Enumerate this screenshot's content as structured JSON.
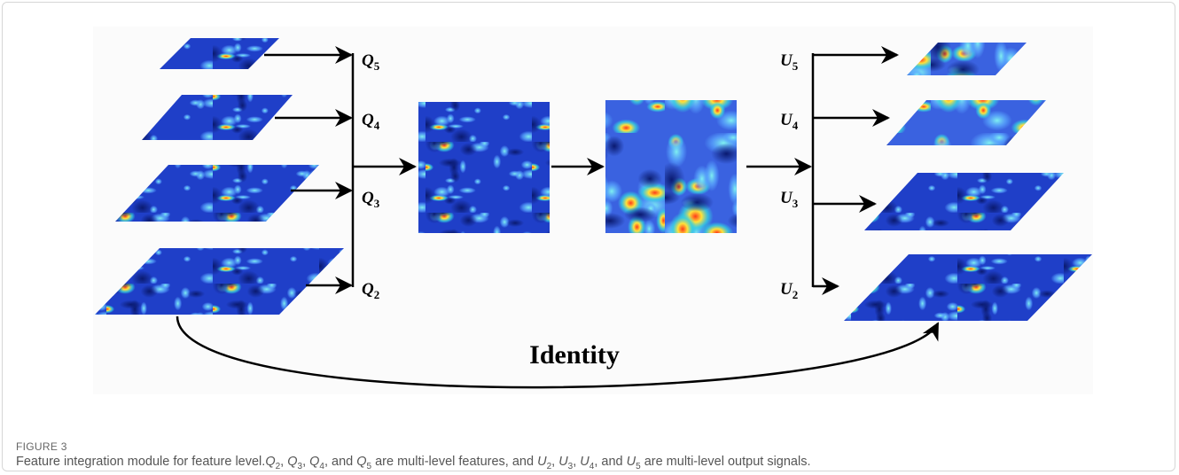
{
  "figure": {
    "left_labels": [
      {
        "text": "Q",
        "sub": "5"
      },
      {
        "text": "Q",
        "sub": "4"
      },
      {
        "text": "Q",
        "sub": "3"
      },
      {
        "text": "Q",
        "sub": "2"
      }
    ],
    "right_labels": [
      {
        "text": "U",
        "sub": "5"
      },
      {
        "text": "U",
        "sub": "4"
      },
      {
        "text": "U",
        "sub": "3"
      },
      {
        "text": "U",
        "sub": "2"
      }
    ],
    "identity_label": "Identity"
  },
  "caption": {
    "label": "FIGURE 3",
    "parts": [
      {
        "text": "Feature integration module for feature level."
      },
      {
        "text": "Q",
        "sub": "2"
      },
      {
        "text": ", "
      },
      {
        "text": "Q",
        "sub": "3"
      },
      {
        "text": ", "
      },
      {
        "text": "Q",
        "sub": "4"
      },
      {
        "text": ", and "
      },
      {
        "text": "Q",
        "sub": "5"
      },
      {
        "text": " are multi-level features, and "
      },
      {
        "text": "U",
        "sub": "2"
      },
      {
        "text": ", "
      },
      {
        "text": "U",
        "sub": "3"
      },
      {
        "text": ", "
      },
      {
        "text": "U",
        "sub": "4"
      },
      {
        "text": ", and "
      },
      {
        "text": "U",
        "sub": "5"
      },
      {
        "text": " are multi-level output signals."
      }
    ]
  }
}
